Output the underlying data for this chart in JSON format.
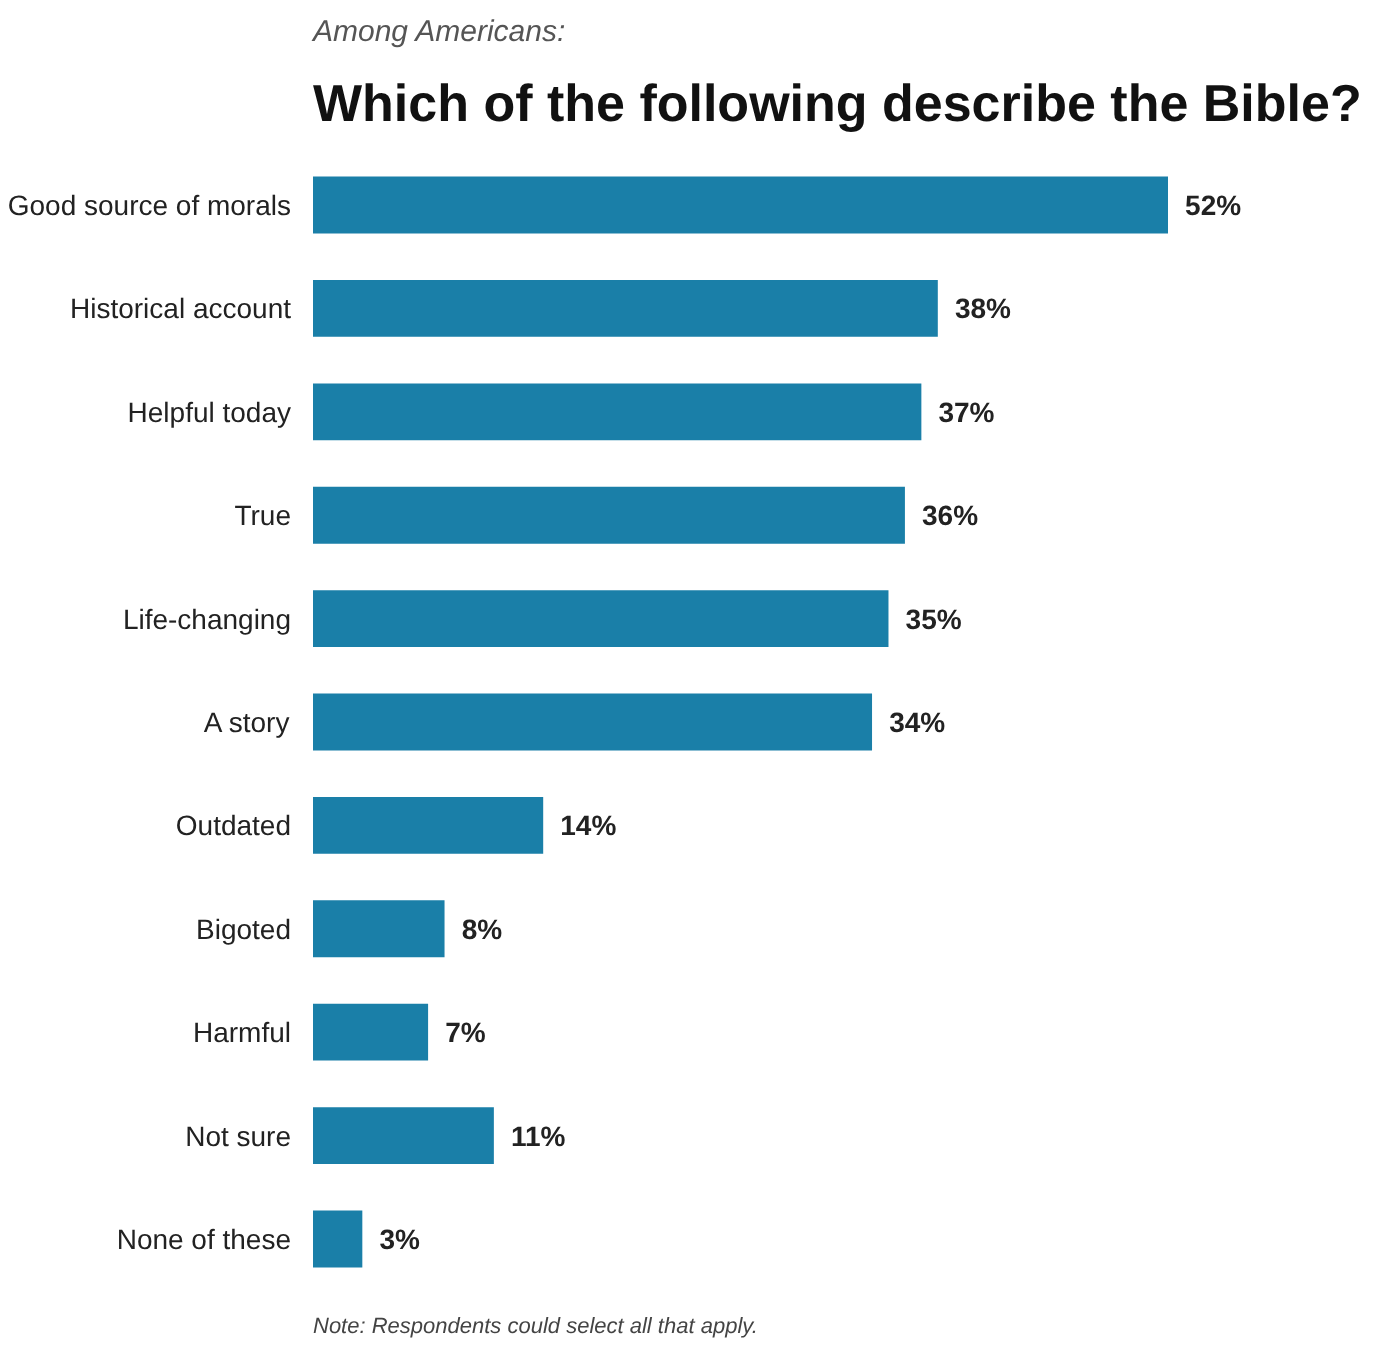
{
  "chart_data": {
    "type": "bar",
    "orientation": "horizontal",
    "subtitle": "Among Americans:",
    "title": "Which of the following describe the Bible?",
    "categories": [
      "Good source of morals",
      "Historical account",
      "Helpful today",
      "True",
      "Life-changing",
      "A story",
      "Outdated",
      "Bigoted",
      "Harmful",
      "Not sure",
      "None of these"
    ],
    "values": [
      52,
      38,
      37,
      36,
      35,
      34,
      14,
      8,
      7,
      11,
      3
    ],
    "value_labels": [
      "52%",
      "38%",
      "37%",
      "36%",
      "35%",
      "34%",
      "14%",
      "8%",
      "7%",
      "11%",
      "3%"
    ],
    "color": "#1a7fa8",
    "grid": false,
    "annotations": [
      "Note: Respondents could select all that apply."
    ]
  }
}
